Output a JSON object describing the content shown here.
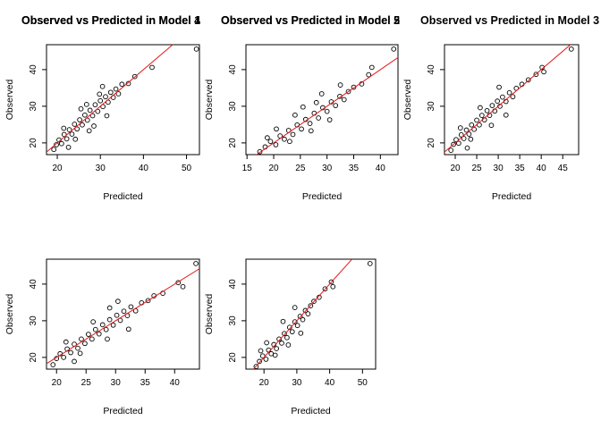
{
  "colors": {
    "points": "#000000",
    "fit_line": "#e31a1c",
    "axis": "#000000",
    "background": "#ffffff"
  },
  "chart_data": [
    {
      "type": "scatter",
      "title": "Observed vs Predicted in Model 1",
      "xlabel": "Predicted",
      "ylabel": "Observed",
      "xlim": [
        17.5,
        53
      ],
      "ylim": [
        16.8,
        46.8
      ],
      "xticks": [
        20,
        30,
        40,
        50
      ],
      "yticks": [
        20,
        30,
        40
      ],
      "fit_line": {
        "intercept": 0,
        "slope": 1
      },
      "grid": false,
      "points": [
        [
          19.2,
          18.2
        ],
        [
          19.8,
          19.5
        ],
        [
          20.4,
          20.8
        ],
        [
          21.0,
          19.8
        ],
        [
          21.6,
          22.3
        ],
        [
          22.2,
          21.1
        ],
        [
          22.8,
          23.6
        ],
        [
          23.4,
          22.4
        ],
        [
          24.0,
          25.1
        ],
        [
          24.6,
          23.8
        ],
        [
          25.2,
          26.3
        ],
        [
          25.8,
          24.9
        ],
        [
          26.4,
          27.6
        ],
        [
          27.0,
          26.2
        ],
        [
          27.6,
          28.9
        ],
        [
          28.2,
          27.4
        ],
        [
          28.8,
          30.4
        ],
        [
          29.4,
          28.6
        ],
        [
          30.0,
          31.5
        ],
        [
          30.6,
          29.9
        ],
        [
          31.2,
          32.6
        ],
        [
          31.8,
          31.1
        ],
        [
          32.4,
          33.8
        ],
        [
          33.0,
          32.4
        ],
        [
          33.6,
          34.7
        ],
        [
          34.2,
          33.4
        ],
        [
          35.0,
          36.0
        ],
        [
          36.5,
          36.2
        ],
        [
          38.0,
          38.1
        ],
        [
          42.0,
          40.6
        ],
        [
          52.3,
          45.6
        ],
        [
          21.5,
          24.0
        ],
        [
          24.2,
          21.0
        ],
        [
          26.8,
          30.5
        ],
        [
          28.5,
          24.6
        ],
        [
          30.5,
          35.4
        ],
        [
          31.5,
          27.4
        ],
        [
          22.6,
          18.8
        ],
        [
          25.5,
          29.3
        ],
        [
          29.8,
          33.3
        ],
        [
          27.4,
          23.3
        ]
      ]
    },
    {
      "type": "scatter",
      "title": "Observed vs Predicted in Model 2",
      "xlabel": "Predicted",
      "ylabel": "Observed",
      "xlim": [
        14.8,
        43.3
      ],
      "ylim": [
        16.8,
        46.8
      ],
      "xticks": [
        15,
        20,
        25,
        30,
        35,
        40
      ],
      "yticks": [
        20,
        30,
        40
      ],
      "fit_line": {
        "intercept": 0,
        "slope": 1
      },
      "grid": false,
      "points": [
        [
          17.4,
          17.6
        ],
        [
          18.4,
          18.9
        ],
        [
          19.4,
          20.4
        ],
        [
          20.4,
          19.5
        ],
        [
          21.2,
          21.9
        ],
        [
          22.0,
          21.0
        ],
        [
          22.8,
          23.4
        ],
        [
          23.6,
          22.3
        ],
        [
          24.4,
          24.9
        ],
        [
          25.2,
          23.8
        ],
        [
          26.0,
          26.4
        ],
        [
          26.8,
          25.3
        ],
        [
          27.6,
          28.1
        ],
        [
          28.4,
          26.8
        ],
        [
          29.2,
          29.6
        ],
        [
          30.0,
          28.6
        ],
        [
          30.8,
          31.2
        ],
        [
          31.6,
          30.2
        ],
        [
          32.4,
          32.7
        ],
        [
          33.2,
          31.8
        ],
        [
          34.0,
          34.0
        ],
        [
          35.0,
          35.2
        ],
        [
          36.5,
          36.1
        ],
        [
          37.8,
          38.6
        ],
        [
          38.4,
          40.6
        ],
        [
          42.5,
          45.6
        ],
        [
          20.5,
          23.8
        ],
        [
          23.0,
          20.4
        ],
        [
          25.5,
          29.8
        ],
        [
          27.0,
          23.3
        ],
        [
          29.0,
          33.4
        ],
        [
          30.5,
          26.3
        ],
        [
          18.8,
          21.4
        ],
        [
          24.0,
          27.6
        ],
        [
          28.0,
          31.0
        ],
        [
          32.5,
          35.8
        ]
      ]
    },
    {
      "type": "scatter",
      "title": "Observed vs Predicted in Model 3",
      "xlabel": "Predicted",
      "ylabel": "Observed",
      "xlim": [
        17.5,
        48.7
      ],
      "ylim": [
        16.8,
        46.8
      ],
      "xticks": [
        20,
        25,
        30,
        35,
        40,
        45
      ],
      "yticks": [
        20,
        30,
        40
      ],
      "fit_line": {
        "intercept": 0,
        "slope": 1
      },
      "grid": false,
      "points": [
        [
          19.0,
          18.0
        ],
        [
          19.6,
          19.6
        ],
        [
          20.2,
          20.9
        ],
        [
          20.8,
          19.9
        ],
        [
          21.4,
          22.2
        ],
        [
          22.0,
          21.2
        ],
        [
          22.6,
          23.5
        ],
        [
          23.2,
          22.4
        ],
        [
          23.8,
          24.9
        ],
        [
          24.4,
          23.7
        ],
        [
          25.0,
          26.2
        ],
        [
          25.6,
          24.9
        ],
        [
          26.2,
          27.5
        ],
        [
          26.8,
          26.3
        ],
        [
          27.4,
          28.8
        ],
        [
          28.0,
          27.5
        ],
        [
          28.6,
          30.2
        ],
        [
          29.2,
          28.7
        ],
        [
          29.8,
          31.4
        ],
        [
          30.4,
          30.0
        ],
        [
          31.0,
          32.5
        ],
        [
          31.8,
          31.3
        ],
        [
          32.6,
          33.7
        ],
        [
          33.4,
          32.6
        ],
        [
          34.2,
          34.9
        ],
        [
          35.5,
          36.0
        ],
        [
          37.0,
          37.2
        ],
        [
          38.8,
          38.7
        ],
        [
          40.2,
          40.6
        ],
        [
          40.6,
          39.4
        ],
        [
          47.0,
          45.6
        ],
        [
          21.2,
          24.1
        ],
        [
          23.6,
          21.0
        ],
        [
          25.8,
          29.6
        ],
        [
          28.4,
          24.8
        ],
        [
          30.2,
          35.2
        ],
        [
          31.8,
          27.6
        ],
        [
          22.8,
          18.6
        ]
      ]
    },
    {
      "type": "scatter",
      "title": "Observed vs Predicted in Model 4",
      "xlabel": "Predicted",
      "ylabel": "Observed",
      "xlim": [
        18.3,
        44.2
      ],
      "ylim": [
        16.8,
        46.8
      ],
      "xticks": [
        20,
        25,
        30,
        35,
        40
      ],
      "yticks": [
        20,
        30,
        40
      ],
      "fit_line": {
        "intercept": 0,
        "slope": 1
      },
      "grid": false,
      "points": [
        [
          19.4,
          18.0
        ],
        [
          20.0,
          19.7
        ],
        [
          20.6,
          21.0
        ],
        [
          21.2,
          20.0
        ],
        [
          21.8,
          22.3
        ],
        [
          22.4,
          21.3
        ],
        [
          23.0,
          23.6
        ],
        [
          23.6,
          22.5
        ],
        [
          24.2,
          25.0
        ],
        [
          24.8,
          23.8
        ],
        [
          25.4,
          26.3
        ],
        [
          26.0,
          25.0
        ],
        [
          26.6,
          27.6
        ],
        [
          27.2,
          26.4
        ],
        [
          27.8,
          28.9
        ],
        [
          28.4,
          27.6
        ],
        [
          29.0,
          30.3
        ],
        [
          29.6,
          28.8
        ],
        [
          30.2,
          31.5
        ],
        [
          30.8,
          30.1
        ],
        [
          31.4,
          32.6
        ],
        [
          32.0,
          31.4
        ],
        [
          32.6,
          33.8
        ],
        [
          33.4,
          32.7
        ],
        [
          34.4,
          34.9
        ],
        [
          35.5,
          35.5
        ],
        [
          36.5,
          36.8
        ],
        [
          38.0,
          37.5
        ],
        [
          40.6,
          40.4
        ],
        [
          41.4,
          39.3
        ],
        [
          43.6,
          45.6
        ],
        [
          21.6,
          24.2
        ],
        [
          24.0,
          21.1
        ],
        [
          26.2,
          29.7
        ],
        [
          28.6,
          25.0
        ],
        [
          30.4,
          35.3
        ],
        [
          32.2,
          27.7
        ],
        [
          23.0,
          18.9
        ],
        [
          29.0,
          33.5
        ]
      ]
    },
    {
      "type": "scatter",
      "title": "Observed vs Predicted in Model 5",
      "xlabel": "Predicted",
      "ylabel": "Observed",
      "xlim": [
        14.5,
        54
      ],
      "ylim": [
        16.8,
        46.8
      ],
      "xticks": [
        20,
        30,
        40,
        50
      ],
      "yticks": [
        20,
        30,
        40
      ],
      "fit_line": {
        "intercept": 0,
        "slope": 1
      },
      "grid": false,
      "points": [
        [
          17.6,
          17.5
        ],
        [
          18.6,
          18.9
        ],
        [
          19.6,
          20.4
        ],
        [
          20.6,
          19.5
        ],
        [
          21.4,
          22.0
        ],
        [
          22.2,
          21.0
        ],
        [
          23.0,
          23.5
        ],
        [
          23.8,
          22.4
        ],
        [
          24.6,
          25.0
        ],
        [
          25.4,
          23.9
        ],
        [
          26.2,
          26.5
        ],
        [
          27.0,
          25.4
        ],
        [
          27.8,
          28.2
        ],
        [
          28.6,
          27.0
        ],
        [
          29.4,
          29.7
        ],
        [
          30.2,
          28.7
        ],
        [
          31.0,
          31.2
        ],
        [
          31.8,
          30.3
        ],
        [
          32.6,
          32.8
        ],
        [
          33.4,
          31.9
        ],
        [
          34.2,
          34.1
        ],
        [
          35.2,
          35.3
        ],
        [
          36.8,
          36.4
        ],
        [
          38.6,
          38.7
        ],
        [
          40.5,
          40.6
        ],
        [
          41.0,
          39.3
        ],
        [
          52.3,
          45.6
        ],
        [
          20.8,
          24.0
        ],
        [
          23.4,
          20.6
        ],
        [
          25.8,
          29.8
        ],
        [
          27.4,
          23.4
        ],
        [
          29.4,
          33.6
        ],
        [
          31.2,
          26.6
        ],
        [
          19.0,
          21.8
        ]
      ]
    }
  ]
}
